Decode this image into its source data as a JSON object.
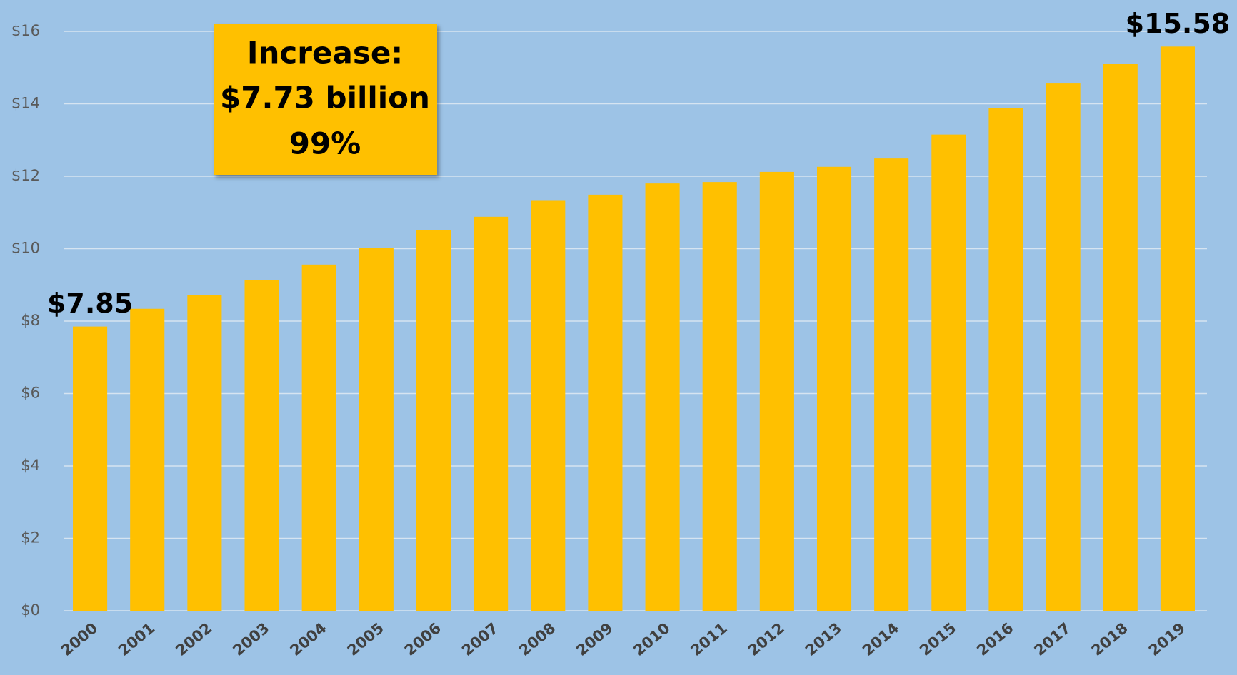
{
  "chart_data": {
    "type": "bar",
    "categories": [
      "2000",
      "2001",
      "2002",
      "2003",
      "2004",
      "2005",
      "2006",
      "2007",
      "2008",
      "2009",
      "2010",
      "2011",
      "2012",
      "2013",
      "2014",
      "2015",
      "2016",
      "2017",
      "2018",
      "2019"
    ],
    "values": [
      7.85,
      8.34,
      8.71,
      9.14,
      9.56,
      10.01,
      10.51,
      10.88,
      11.34,
      11.49,
      11.8,
      11.84,
      12.12,
      12.26,
      12.49,
      13.15,
      13.89,
      14.56,
      15.11,
      15.58
    ],
    "value_labels": [
      "$7.85",
      null,
      null,
      null,
      null,
      null,
      null,
      null,
      null,
      null,
      null,
      null,
      null,
      null,
      null,
      null,
      null,
      null,
      null,
      "$15.58"
    ],
    "color": "#ffc000",
    "ylim": [
      0,
      16
    ],
    "yticks": [
      {
        "value": 0,
        "label": "$0"
      },
      {
        "value": 2,
        "label": "$2"
      },
      {
        "value": 4,
        "label": "$4"
      },
      {
        "value": 6,
        "label": "$6"
      },
      {
        "value": 8,
        "label": "$8"
      },
      {
        "value": 10,
        "label": "$10"
      },
      {
        "value": 12,
        "label": "$12"
      },
      {
        "value": 14,
        "label": "$14"
      },
      {
        "value": 16,
        "label": "$16"
      }
    ],
    "grid": true,
    "annotation": [
      "Increase:",
      "$7.73 billion",
      "99%"
    ]
  }
}
